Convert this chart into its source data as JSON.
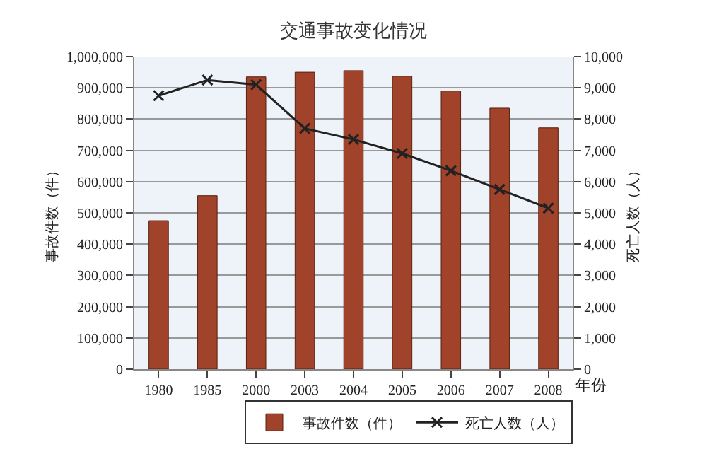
{
  "chart_data": {
    "type": "bar",
    "title": "交通事故变化情况",
    "xlabel": "年份",
    "ylabel": "事故件数（件）",
    "y2label": "死亡人数（人）",
    "categories": [
      "1980",
      "1985",
      "2000",
      "2003",
      "2004",
      "2005",
      "2006",
      "2007",
      "2008"
    ],
    "series": [
      {
        "name": "事故件数（件）",
        "color": "#a0432a",
        "values": [
          475000,
          555000,
          935000,
          950000,
          955000,
          937000,
          890000,
          835000,
          772000
        ]
      },
      {
        "name": "死亡人数（人）",
        "type": "line",
        "axis": "y2",
        "color": "#222222",
        "marker": "cross",
        "values": [
          8750,
          9250,
          9100,
          7700,
          7350,
          6900,
          6350,
          5750,
          5150
        ]
      }
    ],
    "ylim": [
      0,
      1000000
    ],
    "yticks": [
      {
        "value": 0,
        "label": "0"
      },
      {
        "value": 100000,
        "label": "100,000"
      },
      {
        "value": 200000,
        "label": "200,000"
      },
      {
        "value": 300000,
        "label": "300,000"
      },
      {
        "value": 400000,
        "label": "400,000"
      },
      {
        "value": 500000,
        "label": "500,000"
      },
      {
        "value": 600000,
        "label": "600,000"
      },
      {
        "value": 700000,
        "label": "700,000"
      },
      {
        "value": 800000,
        "label": "800,000"
      },
      {
        "value": 900000,
        "label": "900,000"
      },
      {
        "value": 1000000,
        "label": "1,000,000"
      }
    ],
    "y2lim": [
      0,
      10000
    ],
    "y2ticks": [
      {
        "value": 0,
        "label": "0"
      },
      {
        "value": 1000,
        "label": "1,000"
      },
      {
        "value": 2000,
        "label": "2,000"
      },
      {
        "value": 3000,
        "label": "3,000"
      },
      {
        "value": 4000,
        "label": "4,000"
      },
      {
        "value": 5000,
        "label": "5,000"
      },
      {
        "value": 6000,
        "label": "6,000"
      },
      {
        "value": 7000,
        "label": "7,000"
      },
      {
        "value": 8000,
        "label": "8,000"
      },
      {
        "value": 9000,
        "label": "9,000"
      },
      {
        "value": 10000,
        "label": "10,000"
      }
    ],
    "grid": "y",
    "legend": "bottom right"
  }
}
